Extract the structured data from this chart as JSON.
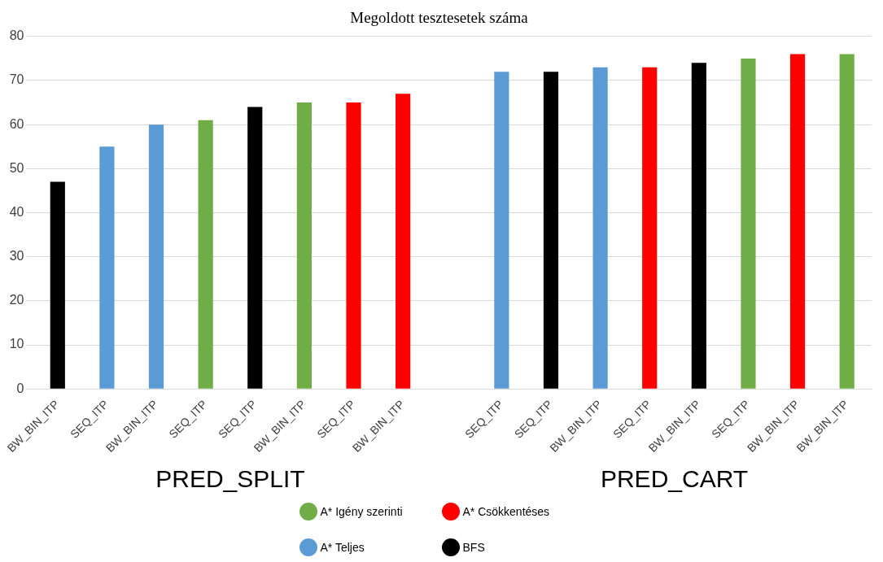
{
  "chart_data": {
    "type": "bar",
    "title": "Megoldott tesztesetek száma",
    "categories": [
      "BW_BIN_ITP",
      "SEQ_ITP",
      "BW_BIN_ITP",
      "SEQ_ITP",
      "SEQ_ITP",
      "BW_BIN_ITP",
      "SEQ_ITP",
      "BW_BIN_ITP",
      null,
      "SEQ_ITP",
      "SEQ_ITP",
      "BW_BIN_ITP",
      "SEQ_ITP",
      "BW_BIN_ITP",
      "SEQ_ITP",
      "BW_BIN_ITP",
      "BW_BIN_ITP"
    ],
    "series": [
      {
        "name": "A* Igény szerinti",
        "color": "#70ad47",
        "values": [
          null,
          null,
          null,
          61,
          null,
          65,
          null,
          null,
          null,
          null,
          null,
          null,
          null,
          null,
          75,
          null,
          76
        ]
      },
      {
        "name": "A* Csökkentéses",
        "color": "#ff0000",
        "values": [
          null,
          null,
          null,
          null,
          null,
          null,
          65,
          67,
          null,
          null,
          null,
          null,
          73,
          null,
          null,
          76,
          null
        ]
      },
      {
        "name": "A* Teljes",
        "color": "#5b9bd5",
        "values": [
          null,
          55,
          60,
          null,
          null,
          null,
          null,
          null,
          null,
          72,
          null,
          73,
          null,
          null,
          null,
          null,
          null
        ]
      },
      {
        "name": "BFS",
        "color": "#000000",
        "values": [
          47,
          null,
          null,
          null,
          64,
          null,
          null,
          null,
          null,
          null,
          72,
          null,
          null,
          74,
          null,
          null,
          null
        ]
      }
    ],
    "ylim": [
      0,
      80
    ],
    "yticks": [
      0,
      10,
      20,
      30,
      40,
      50,
      60,
      70,
      80
    ],
    "grid": "y",
    "legend": "bottom",
    "annotations": [
      "PRED_SPLIT",
      "PRED_CART"
    ]
  }
}
